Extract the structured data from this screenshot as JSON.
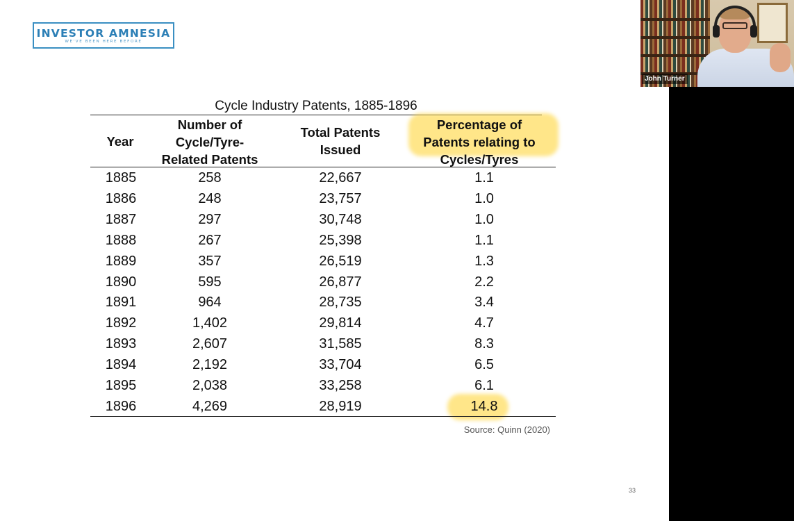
{
  "logo": {
    "name": "INVESTOR AMNESIA",
    "tagline": "WE'VE BEEN HERE BEFORE",
    "color": "#2c7fb6"
  },
  "video": {
    "participant_name": "John Turner"
  },
  "slide": {
    "page_number": "33",
    "highlight_color": "#ffd640",
    "source": "Source: Quinn (2020)"
  },
  "chart_data": {
    "type": "table",
    "title": "Cycle Industry Patents, 1885-1896",
    "columns": [
      "Year",
      "Number of Cycle/Tyre-Related Patents",
      "Total Patents Issued",
      "Percentage of Patents relating to Cycles/Tyres"
    ],
    "header_lines": {
      "year": [
        "Year"
      ],
      "cycle": [
        "Number of",
        "Cycle/Tyre-",
        "Related Patents"
      ],
      "total": [
        "Total Patents",
        "Issued"
      ],
      "pct": [
        "Percentage of",
        "Patents relating to",
        "Cycles/Tyres"
      ]
    },
    "rows": [
      [
        "1885",
        "258",
        "22,667",
        "1.1"
      ],
      [
        "1886",
        "248",
        "23,757",
        "1.0"
      ],
      [
        "1887",
        "297",
        "30,748",
        "1.0"
      ],
      [
        "1888",
        "267",
        "25,398",
        "1.1"
      ],
      [
        "1889",
        "357",
        "26,519",
        "1.3"
      ],
      [
        "1890",
        "595",
        "26,877",
        "2.2"
      ],
      [
        "1891",
        "964",
        "28,735",
        "3.4"
      ],
      [
        "1892",
        "1,402",
        "29,814",
        "4.7"
      ],
      [
        "1893",
        "2,607",
        "31,585",
        "8.3"
      ],
      [
        "1894",
        "2,192",
        "33,704",
        "6.5"
      ],
      [
        "1895",
        "2,038",
        "33,258",
        "6.1"
      ],
      [
        "1896",
        "4,269",
        "28,919",
        "14.8"
      ]
    ]
  }
}
